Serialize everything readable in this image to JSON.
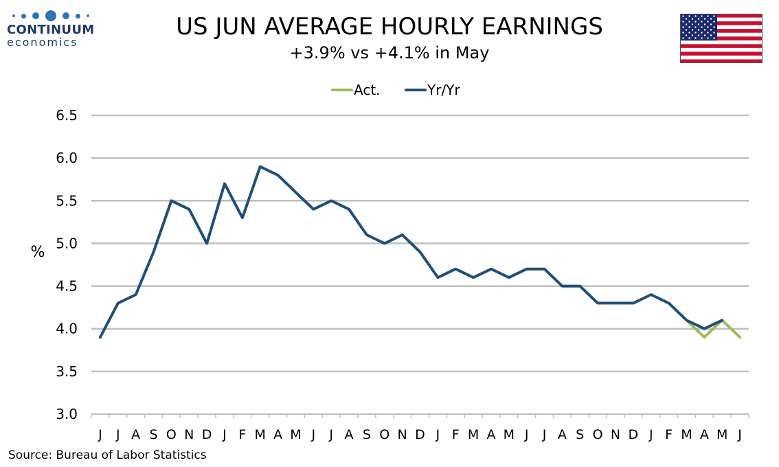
{
  "logo": {
    "name": "CONTINUUM",
    "sub": "economics"
  },
  "header": {
    "title": "US JUN AVERAGE HOURLY EARNINGS",
    "subtitle": "+3.9% vs +4.1% in May"
  },
  "source": "Source: Bureau of Labor Statistics",
  "chart_data": {
    "type": "line",
    "ylabel": "%",
    "xlabel": "",
    "ylim": [
      3.0,
      6.5
    ],
    "yticks": [
      "3.0",
      "3.5",
      "4.0",
      "4.5",
      "5.0",
      "5.5",
      "6.0",
      "6.5"
    ],
    "grid": true,
    "legend_position": "top-center",
    "categories": [
      "J",
      "J",
      "A",
      "S",
      "O",
      "N",
      "D",
      "J",
      "F",
      "M",
      "A",
      "M",
      "J",
      "J",
      "A",
      "S",
      "O",
      "N",
      "D",
      "J",
      "F",
      "M",
      "A",
      "M",
      "J",
      "J",
      "A",
      "S",
      "O",
      "N",
      "D",
      "J",
      "F",
      "M",
      "A",
      "M",
      "J"
    ],
    "series": [
      {
        "name": "Act.",
        "color": "#9bbb59",
        "values": [
          null,
          null,
          null,
          null,
          null,
          null,
          null,
          null,
          null,
          null,
          null,
          null,
          null,
          null,
          null,
          null,
          null,
          null,
          null,
          null,
          null,
          null,
          null,
          null,
          null,
          null,
          null,
          null,
          null,
          null,
          null,
          null,
          null,
          4.1,
          3.9,
          4.1,
          3.9
        ]
      },
      {
        "name": "Yr/Yr",
        "color": "#1f4e79",
        "values": [
          3.9,
          4.3,
          4.4,
          4.9,
          5.5,
          5.4,
          5.0,
          5.7,
          5.3,
          5.9,
          5.8,
          5.6,
          5.4,
          5.5,
          5.4,
          5.1,
          5.0,
          5.1,
          4.9,
          4.6,
          4.7,
          4.6,
          4.7,
          4.6,
          4.7,
          4.7,
          4.5,
          4.5,
          4.3,
          4.3,
          4.3,
          4.4,
          4.3,
          4.1,
          4.0,
          4.1,
          null
        ]
      }
    ]
  }
}
